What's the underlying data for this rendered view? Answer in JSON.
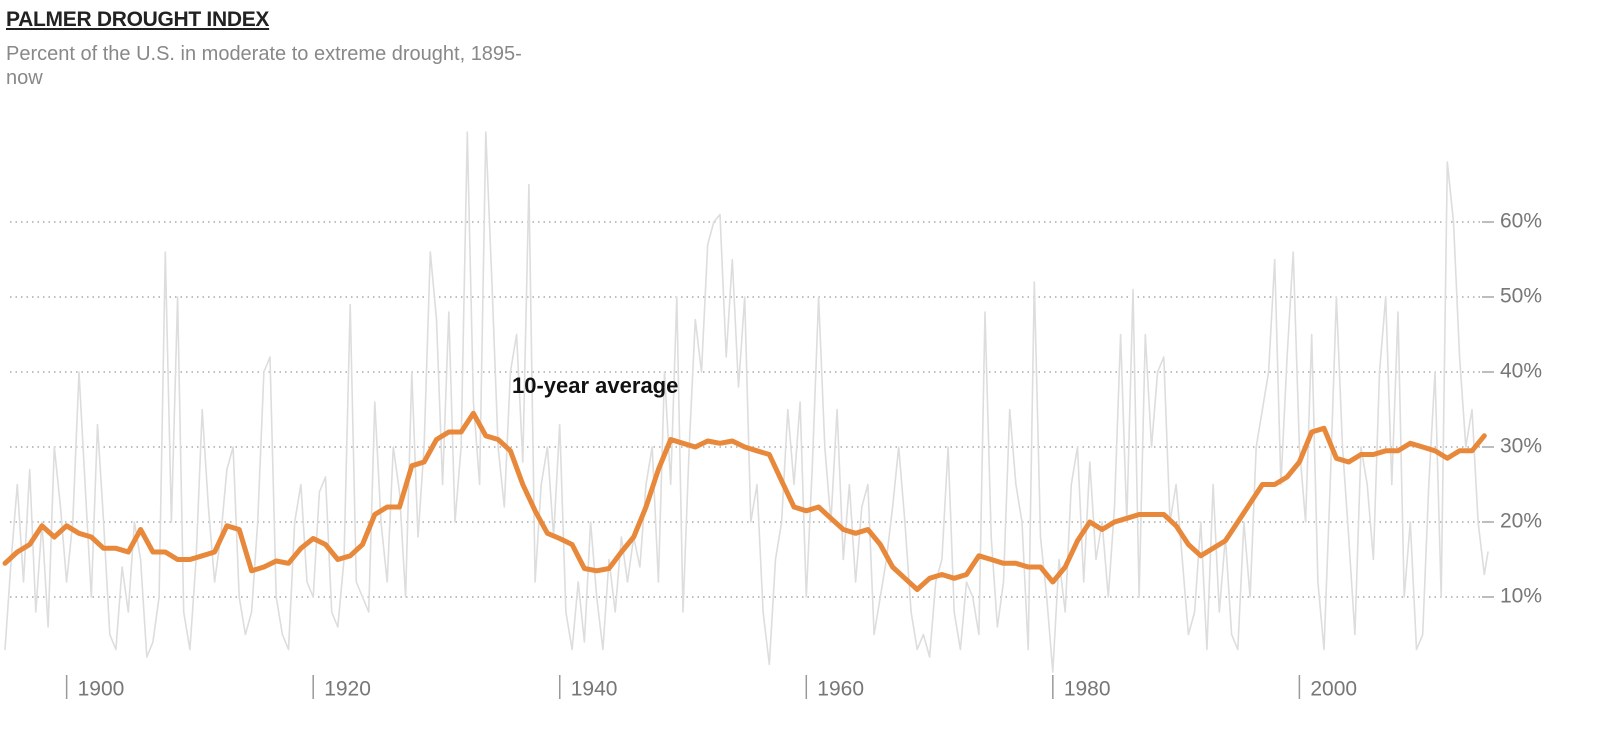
{
  "chart_data": {
    "type": "line",
    "title": "PALMER DROUGHT INDEX",
    "subtitle": "Percent of the U.S. in moderate to extreme drought, 1895-now",
    "xlim": [
      1895,
      2015.3
    ],
    "xticks": [
      1900,
      1920,
      1940,
      1960,
      1980,
      2000
    ],
    "ylim": [
      0,
      72
    ],
    "yticks": [
      {
        "value": 10,
        "label": "10%"
      },
      {
        "value": 20,
        "label": "20%"
      },
      {
        "value": 30,
        "label": "30%"
      },
      {
        "value": 40,
        "label": "40%"
      },
      {
        "value": 50,
        "label": "50%"
      },
      {
        "value": 60,
        "label": "60%"
      }
    ],
    "grid": true,
    "series": [
      {
        "color": "#dddddd",
        "x": [
          1895,
          1895.5,
          1896,
          1896.5,
          1897,
          1897.5,
          1898,
          1898.5,
          1899,
          1899.5,
          1900,
          1900.5,
          1901,
          1901.5,
          1902,
          1902.5,
          1903,
          1903.5,
          1904,
          1904.5,
          1905,
          1905.5,
          1906,
          1906.5,
          1907,
          1907.5,
          1908,
          1908.5,
          1909,
          1909.5,
          1910,
          1910.5,
          1911,
          1911.5,
          1912,
          1912.5,
          1913,
          1913.5,
          1914,
          1914.5,
          1915,
          1915.5,
          1916,
          1916.5,
          1917,
          1917.5,
          1918,
          1918.5,
          1919,
          1919.5,
          1920,
          1920.5,
          1921,
          1921.5,
          1922,
          1922.5,
          1923,
          1923.5,
          1924,
          1924.5,
          1925,
          1925.5,
          1926,
          1926.5,
          1927,
          1927.5,
          1928,
          1928.5,
          1929,
          1929.5,
          1930,
          1930.5,
          1931,
          1931.5,
          1932,
          1932.5,
          1933,
          1933.5,
          1934,
          1934.5,
          1935,
          1935.5,
          1936,
          1936.5,
          1937,
          1937.5,
          1938,
          1938.5,
          1939,
          1939.5,
          1940,
          1940.5,
          1941,
          1941.5,
          1942,
          1942.5,
          1943,
          1943.5,
          1944,
          1944.5,
          1945,
          1945.5,
          1946,
          1946.5,
          1947,
          1947.5,
          1948,
          1948.5,
          1949,
          1949.5,
          1950,
          1950.5,
          1951,
          1951.5,
          1952,
          1952.5,
          1953,
          1953.5,
          1954,
          1954.5,
          1955,
          1955.5,
          1956,
          1956.5,
          1957,
          1957.5,
          1958,
          1958.5,
          1959,
          1959.5,
          1960,
          1960.5,
          1961,
          1961.5,
          1962,
          1962.5,
          1963,
          1963.5,
          1964,
          1964.5,
          1965,
          1965.5,
          1966,
          1966.5,
          1967,
          1967.5,
          1968,
          1968.5,
          1969,
          1969.5,
          1970,
          1970.5,
          1971,
          1971.5,
          1972,
          1972.5,
          1973,
          1973.5,
          1974,
          1974.5,
          1975,
          1975.5,
          1976,
          1976.5,
          1977,
          1977.5,
          1978,
          1978.5,
          1979,
          1979.5,
          1980,
          1980.5,
          1981,
          1981.5,
          1982,
          1982.5,
          1983,
          1983.5,
          1984,
          1984.5,
          1985,
          1985.5,
          1986,
          1986.5,
          1987,
          1987.5,
          1988,
          1988.5,
          1989,
          1989.5,
          1990,
          1990.5,
          1991,
          1991.5,
          1992,
          1992.5,
          1993,
          1993.5,
          1994,
          1994.5,
          1995,
          1995.5,
          1996,
          1996.5,
          1997,
          1997.5,
          1998,
          1998.5,
          1999,
          1999.5,
          2000,
          2000.5,
          2001,
          2001.5,
          2002,
          2002.5,
          2003,
          2003.5,
          2004,
          2004.5,
          2005,
          2005.5,
          2006,
          2006.5,
          2007,
          2007.5,
          2008,
          2008.5,
          2009,
          2009.5,
          2010,
          2010.5,
          2011,
          2011.5,
          2012,
          2012.5,
          2013,
          2013.5,
          2014,
          2014.5,
          2015,
          2015.3
        ],
        "values": [
          3,
          15,
          25,
          12,
          27,
          8,
          20,
          6,
          30,
          22,
          12,
          20,
          40,
          25,
          10,
          33,
          20,
          5,
          3,
          14,
          8,
          20,
          15,
          2,
          4,
          10,
          56,
          20,
          50,
          8,
          3,
          15,
          35,
          22,
          12,
          18,
          27,
          30,
          10,
          5,
          8,
          20,
          40,
          42,
          10,
          5,
          3,
          20,
          25,
          12,
          10,
          24,
          26,
          8,
          6,
          15,
          49,
          12,
          10,
          8,
          36,
          20,
          12,
          30,
          24,
          10,
          40,
          18,
          30,
          56,
          47,
          25,
          48,
          20,
          30,
          72,
          36,
          25,
          72,
          52,
          30,
          22,
          40,
          45,
          28,
          65,
          12,
          25,
          30,
          18,
          33,
          8,
          3,
          12,
          4,
          20,
          10,
          3,
          15,
          8,
          18,
          12,
          18,
          14,
          25,
          30,
          12,
          40,
          25,
          50,
          8,
          30,
          47,
          40,
          57,
          60,
          61,
          42,
          55,
          38,
          50,
          20,
          25,
          8,
          1,
          15,
          20,
          35,
          25,
          36,
          10,
          28,
          50,
          30,
          20,
          35,
          15,
          25,
          12,
          22,
          25,
          5,
          10,
          15,
          22,
          30,
          20,
          8,
          3,
          5,
          2,
          12,
          15,
          30,
          8,
          3,
          12,
          10,
          5,
          48,
          18,
          6,
          12,
          35,
          25,
          20,
          3,
          52,
          18,
          10,
          0,
          15,
          8,
          25,
          30,
          12,
          28,
          15,
          20,
          10,
          22,
          45,
          20,
          51,
          10,
          45,
          30,
          40,
          42,
          20,
          25,
          15,
          5,
          8,
          20,
          3,
          25,
          8,
          18,
          5,
          3,
          20,
          10,
          30,
          35,
          40,
          55,
          25,
          42,
          56,
          30,
          20,
          45,
          12,
          3,
          25,
          50,
          30,
          18,
          5,
          30,
          25,
          15,
          40,
          50,
          25,
          48,
          10,
          20,
          3,
          5,
          25,
          40,
          10,
          68,
          60,
          42,
          30,
          35,
          20,
          13,
          16
        ]
      },
      {
        "name": "10-year average",
        "color": "#e8883a",
        "x": [
          1895,
          1896,
          1897,
          1898,
          1899,
          1900,
          1901,
          1902,
          1903,
          1904,
          1905,
          1906,
          1907,
          1908,
          1909,
          1910,
          1911,
          1912,
          1913,
          1914,
          1915,
          1916,
          1917,
          1918,
          1919,
          1920,
          1921,
          1922,
          1923,
          1924,
          1925,
          1926,
          1927,
          1928,
          1929,
          1930,
          1931,
          1932,
          1933,
          1934,
          1935,
          1936,
          1937,
          1938,
          1939,
          1940,
          1941,
          1942,
          1943,
          1944,
          1945,
          1946,
          1947,
          1948,
          1949,
          1950,
          1951,
          1952,
          1953,
          1954,
          1955,
          1956,
          1957,
          1958,
          1959,
          1960,
          1961,
          1962,
          1963,
          1964,
          1965,
          1966,
          1967,
          1968,
          1969,
          1970,
          1971,
          1972,
          1973,
          1974,
          1975,
          1976,
          1977,
          1978,
          1979,
          1980,
          1981,
          1982,
          1983,
          1984,
          1985,
          1986,
          1987,
          1988,
          1989,
          1990,
          1991,
          1992,
          1993,
          1994,
          1995,
          1996,
          1997,
          1998,
          1999,
          2000,
          2001,
          2002,
          2003,
          2004,
          2005,
          2006,
          2007,
          2008,
          2009,
          2010,
          2011,
          2012,
          2013,
          2014,
          2015
        ],
        "values": [
          14.5,
          16,
          17,
          19.5,
          18,
          19.5,
          18.5,
          18,
          16.5,
          16.5,
          16,
          19,
          16,
          16,
          15,
          15,
          15.5,
          16,
          19.5,
          19,
          13.5,
          14,
          14.8,
          14.5,
          16.5,
          17.8,
          17,
          15,
          15.5,
          17,
          21,
          22,
          22,
          27.5,
          28,
          31,
          32,
          32,
          34.5,
          31.5,
          31,
          29.5,
          25,
          21.5,
          18.5,
          17.8,
          17,
          13.8,
          13.5,
          13.8,
          16,
          18,
          22,
          27,
          31,
          30.5,
          30,
          30.8,
          30.5,
          30.8,
          30,
          29.5,
          29,
          25.5,
          22,
          21.5,
          22,
          20.5,
          19,
          18.5,
          19,
          17,
          14,
          12.5,
          11,
          12.5,
          13,
          12.5,
          13,
          15.5,
          15,
          14.5,
          14.5,
          14,
          14,
          12,
          14,
          17.5,
          20,
          19,
          20,
          20.5,
          21,
          21,
          21,
          19.5,
          17,
          15.5,
          16.5,
          17.5,
          20,
          22.5,
          25,
          25,
          26,
          28,
          32,
          32.5,
          28.5,
          28,
          29,
          29,
          29.5,
          29.5,
          30.5,
          30,
          29.5,
          28.5,
          29.5,
          29.5,
          31.5
        ]
      }
    ]
  }
}
